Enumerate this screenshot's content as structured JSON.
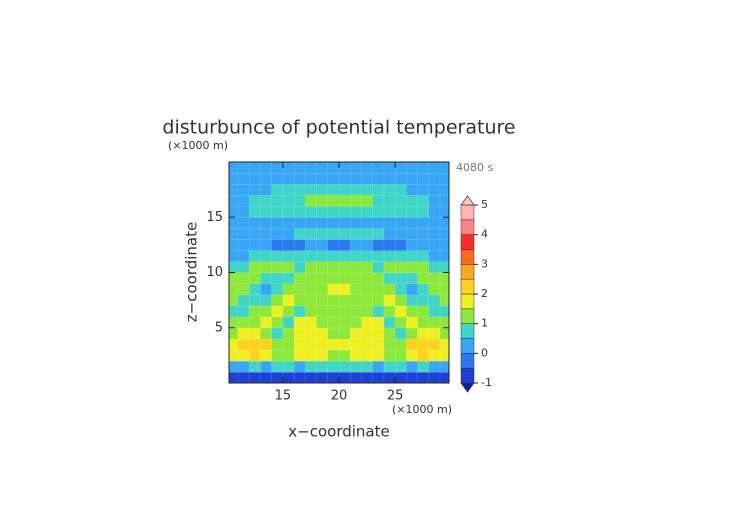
{
  "chart_data": {
    "type": "contourf",
    "title": "disturbunce of potential temperature",
    "time_label": "4080 s",
    "x_label": "x−coordinate",
    "y_label": "z−coordinate",
    "x_unit": "(×1000 m)",
    "y_unit": "(×1000 m)",
    "xlim": [
      10.2,
      29.8
    ],
    "ylim": [
      0,
      20
    ],
    "xticks": [
      15,
      20,
      25
    ],
    "yticks": [
      5,
      10,
      15
    ],
    "x": [
      10.5,
      11.5,
      12.5,
      13.5,
      14.5,
      15.5,
      16.5,
      17.5,
      18.5,
      19.5,
      20.5,
      21.5,
      22.5,
      23.5,
      24.5,
      25.5,
      26.5,
      27.5,
      28.5,
      29.5
    ],
    "z": [
      0.5,
      1.5,
      2.5,
      3.5,
      4.5,
      5.5,
      6.5,
      7.5,
      8.5,
      9.5,
      10.5,
      11.5,
      12.5,
      13.5,
      14.5,
      15.5,
      16.5,
      17.5,
      18.5,
      19.5
    ],
    "values": [
      [
        -0.6,
        -0.7,
        -0.6,
        -0.7,
        -0.8,
        -0.7,
        -0.6,
        -0.7,
        -0.8,
        -0.7,
        -0.7,
        -0.8,
        -0.7,
        -0.6,
        -0.7,
        -0.8,
        -0.7,
        -0.6,
        -0.7,
        -0.6
      ],
      [
        0.3,
        0.4,
        0.5,
        0.4,
        0.6,
        0.5,
        0.4,
        0.6,
        0.7,
        0.8,
        0.8,
        0.7,
        0.6,
        0.4,
        0.5,
        0.6,
        0.4,
        0.5,
        0.4,
        0.3
      ],
      [
        1.6,
        1.8,
        2.2,
        1.9,
        1.4,
        1.2,
        1.6,
        1.8,
        1.6,
        1.4,
        1.4,
        1.6,
        1.8,
        1.6,
        1.2,
        1.4,
        1.9,
        2.2,
        1.8,
        1.6
      ],
      [
        1.8,
        2.1,
        2.4,
        2.0,
        1.3,
        1.1,
        1.5,
        1.9,
        1.7,
        1.5,
        1.5,
        1.7,
        1.9,
        1.5,
        1.1,
        1.3,
        2.0,
        2.4,
        2.1,
        1.8
      ],
      [
        1.4,
        1.6,
        1.5,
        1.2,
        0.9,
        1.3,
        1.7,
        1.8,
        1.5,
        1.3,
        1.3,
        1.5,
        1.8,
        1.7,
        1.3,
        0.9,
        1.2,
        1.5,
        1.6,
        1.4
      ],
      [
        1.0,
        1.1,
        1.3,
        1.5,
        1.2,
        0.8,
        1.5,
        1.7,
        1.4,
        1.2,
        1.2,
        1.4,
        1.7,
        1.5,
        0.8,
        1.2,
        1.5,
        1.3,
        1.1,
        1.0
      ],
      [
        0.8,
        0.9,
        1.1,
        1.4,
        1.6,
        1.2,
        0.9,
        1.4,
        1.3,
        1.1,
        1.1,
        1.3,
        1.4,
        0.9,
        1.2,
        1.6,
        1.4,
        1.1,
        0.9,
        0.8
      ],
      [
        1.2,
        0.8,
        0.6,
        0.8,
        1.1,
        1.5,
        1.3,
        1.0,
        1.2,
        1.3,
        1.3,
        1.2,
        1.0,
        1.3,
        1.5,
        1.1,
        0.8,
        0.6,
        0.8,
        1.2
      ],
      [
        1.4,
        1.1,
        0.7,
        0.4,
        0.7,
        1.0,
        1.3,
        1.2,
        1.0,
        1.6,
        1.6,
        1.0,
        1.2,
        1.3,
        1.0,
        0.7,
        0.4,
        0.7,
        1.1,
        1.4
      ],
      [
        1.0,
        1.3,
        1.2,
        0.9,
        0.7,
        0.6,
        1.0,
        1.2,
        1.0,
        1.1,
        1.1,
        1.0,
        1.2,
        1.0,
        0.6,
        0.7,
        0.9,
        1.2,
        1.3,
        1.0
      ],
      [
        0.7,
        0.9,
        1.1,
        1.3,
        1.2,
        1.0,
        0.8,
        1.1,
        1.3,
        1.2,
        1.2,
        1.3,
        1.1,
        0.8,
        1.0,
        1.2,
        1.3,
        1.1,
        0.9,
        0.7
      ],
      [
        0.4,
        0.4,
        0.5,
        0.6,
        0.7,
        0.8,
        0.7,
        0.6,
        0.7,
        0.8,
        0.8,
        0.7,
        0.6,
        0.7,
        0.8,
        0.7,
        0.6,
        0.5,
        0.4,
        0.4
      ],
      [
        0.3,
        0.3,
        0.2,
        0.0,
        -0.2,
        -0.3,
        -0.1,
        0.1,
        0.0,
        -0.2,
        -0.2,
        0.0,
        0.1,
        -0.1,
        -0.3,
        -0.2,
        0.0,
        0.2,
        0.3,
        0.3
      ],
      [
        0.3,
        0.3,
        0.4,
        0.4,
        0.3,
        0.4,
        0.5,
        0.6,
        0.6,
        0.6,
        0.6,
        0.6,
        0.6,
        0.5,
        0.4,
        0.3,
        0.4,
        0.4,
        0.3,
        0.3
      ],
      [
        0.4,
        0.4,
        0.4,
        0.4,
        0.4,
        0.4,
        0.4,
        0.4,
        0.4,
        0.4,
        0.4,
        0.4,
        0.4,
        0.4,
        0.4,
        0.4,
        0.4,
        0.4,
        0.4,
        0.4
      ],
      [
        0.4,
        0.4,
        0.5,
        0.6,
        0.7,
        0.8,
        0.8,
        0.9,
        0.9,
        0.9,
        0.9,
        0.9,
        0.9,
        0.8,
        0.8,
        0.7,
        0.6,
        0.5,
        0.4,
        0.4
      ],
      [
        0.4,
        0.4,
        0.5,
        0.6,
        0.7,
        0.8,
        0.9,
        1.2,
        1.3,
        1.3,
        1.3,
        1.3,
        1.2,
        0.9,
        0.8,
        0.7,
        0.6,
        0.5,
        0.4,
        0.4
      ],
      [
        0.3,
        0.3,
        0.4,
        0.4,
        0.5,
        0.6,
        0.7,
        0.8,
        0.8,
        0.8,
        0.8,
        0.8,
        0.8,
        0.7,
        0.6,
        0.5,
        0.4,
        0.4,
        0.3,
        0.3
      ],
      [
        0.3,
        0.3,
        0.3,
        0.4,
        0.4,
        0.4,
        0.4,
        0.4,
        0.4,
        0.4,
        0.4,
        0.4,
        0.4,
        0.4,
        0.4,
        0.4,
        0.4,
        0.3,
        0.3,
        0.3
      ],
      [
        0.1,
        0.1,
        0.1,
        0.2,
        0.2,
        0.2,
        0.2,
        0.2,
        0.2,
        0.2,
        0.2,
        0.2,
        0.2,
        0.2,
        0.2,
        0.2,
        0.2,
        0.1,
        0.1,
        0.1
      ]
    ],
    "levels": [
      -1,
      -0.5,
      0,
      0.5,
      1,
      1.5,
      2,
      2.5,
      3,
      3.5,
      4,
      4.5,
      5
    ],
    "colors": [
      "#1c3fd8",
      "#2c78f0",
      "#38a6f6",
      "#3fd6c8",
      "#8ee83a",
      "#eef022",
      "#ffd21e",
      "#ffa51e",
      "#ff6a1e",
      "#ff2a2a",
      "#ff8585",
      "#ffb5b5"
    ],
    "under_color": "#0a1ea0",
    "over_color": "#ffc8c8",
    "colorbar_ticks": [
      -1,
      0,
      1,
      2,
      3,
      4,
      5
    ]
  }
}
